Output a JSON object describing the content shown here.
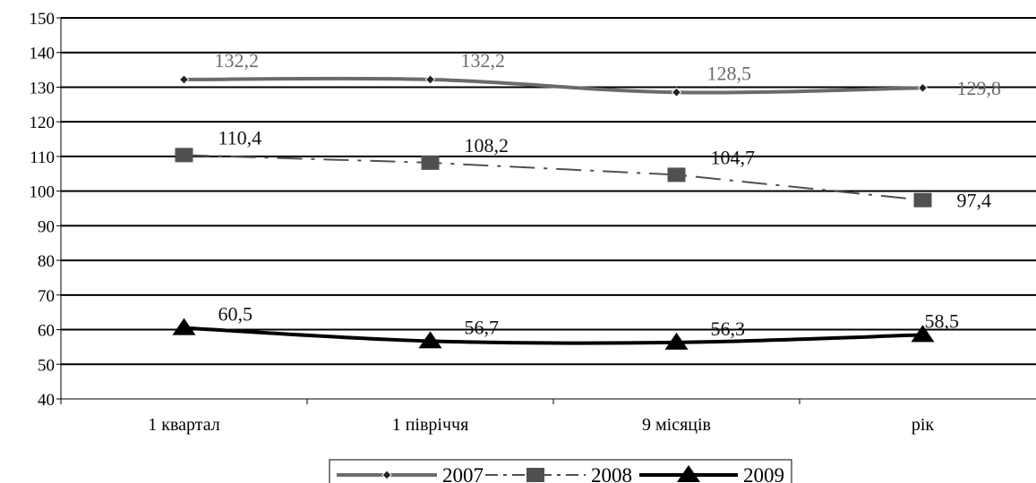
{
  "chart_data": {
    "type": "line",
    "title": "",
    "xlabel": "",
    "ylabel": "",
    "categories": [
      "1 квартал",
      "1 півріччя",
      "9 місяців",
      "рік"
    ],
    "ylim": [
      40,
      150
    ],
    "ytick_step": 10,
    "grid": "horizontal",
    "legend_position": "bottom",
    "series": [
      {
        "name": "2007",
        "values": [
          132.2,
          132.2,
          128.5,
          129.8
        ],
        "labels": [
          "132,2",
          "132,2",
          "128,5",
          "129,8"
        ],
        "color": "#6b6b6b",
        "marker": "diamond",
        "line": "solid",
        "smooth": true
      },
      {
        "name": "2008",
        "values": [
          110.4,
          108.2,
          104.7,
          97.4
        ],
        "labels": [
          "110,4",
          "108,2",
          "104,7",
          "97,4"
        ],
        "color": "#505050",
        "marker": "square",
        "line": "dash-dot",
        "smooth": false
      },
      {
        "name": "2009",
        "values": [
          60.5,
          56.7,
          56.3,
          58.5
        ],
        "labels": [
          "60,5",
          "56,7",
          "56,3",
          "58,5"
        ],
        "color": "#000000",
        "marker": "triangle",
        "line": "solid",
        "smooth": true
      }
    ]
  }
}
